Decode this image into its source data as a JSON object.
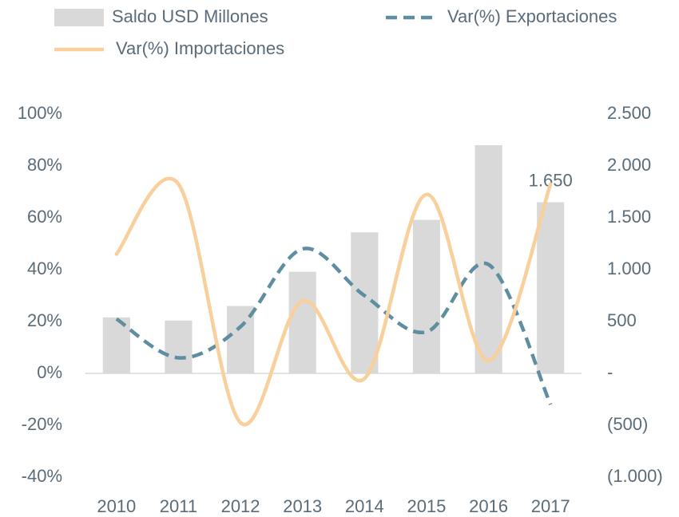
{
  "chart_data": {
    "type": "combo",
    "categories": [
      "2010",
      "2011",
      "2012",
      "2013",
      "2014",
      "2015",
      "2016",
      "2017"
    ],
    "series": [
      {
        "name": "Saldo USD Millones",
        "type": "bar",
        "axis": "y2",
        "color": "#d9d9d9",
        "values": [
          540,
          510,
          650,
          980,
          1360,
          1480,
          2200,
          1650
        ],
        "value_labels": [
          null,
          null,
          null,
          null,
          null,
          null,
          null,
          "1.650"
        ]
      },
      {
        "name": "Var(%) Exportaciones",
        "type": "line",
        "dashed": true,
        "smooth": true,
        "color": "#5e8ea0",
        "values": [
          21,
          6,
          18,
          48,
          30,
          16,
          42,
          -12
        ]
      },
      {
        "name": "Var(%) Importaciones",
        "type": "line",
        "smooth": true,
        "color": "#f9cf9c",
        "values": [
          46,
          73,
          -19,
          28,
          -2,
          69,
          5,
          73
        ]
      }
    ],
    "ylim": [
      -40,
      100
    ],
    "yticks": [
      {
        "value": -40,
        "label": "-40%"
      },
      {
        "value": -20,
        "label": "-20%"
      },
      {
        "value": 0,
        "label": "0%"
      },
      {
        "value": 20,
        "label": "20%"
      },
      {
        "value": 40,
        "label": "40%"
      },
      {
        "value": 60,
        "label": "60%"
      },
      {
        "value": 80,
        "label": "80%"
      },
      {
        "value": 100,
        "label": "100%"
      }
    ],
    "y2lim": [
      -1000,
      2500
    ],
    "y2ticks": [
      {
        "value": -1000,
        "label": "(1.000)"
      },
      {
        "value": -500,
        "label": "(500)"
      },
      {
        "value": 0,
        "label": "-"
      },
      {
        "value": 500,
        "label": "500"
      },
      {
        "value": 1000,
        "label": "1.000"
      },
      {
        "value": 1500,
        "label": "1.500"
      },
      {
        "value": 2000,
        "label": "2.000"
      },
      {
        "value": 2500,
        "label": "2.500"
      }
    ],
    "legend": "top",
    "grid": false
  }
}
